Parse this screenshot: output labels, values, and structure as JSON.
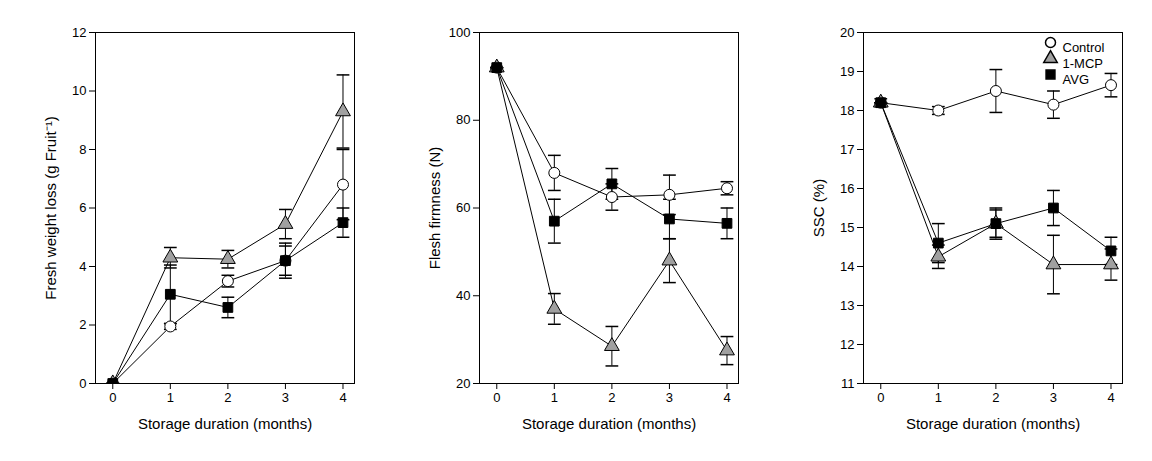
{
  "chart_data": [
    {
      "type": "line",
      "x_label": "Storage duration (months)",
      "y_label": "Fresh weight loss (g Fruit⁻¹)",
      "x": [
        0,
        1,
        2,
        3,
        4
      ],
      "xlim": [
        -0.3,
        4.2
      ],
      "xticks": [
        0,
        1,
        2,
        3,
        4
      ],
      "ylim": [
        0,
        12
      ],
      "yticks": [
        0,
        2,
        4,
        6,
        8,
        10,
        12
      ],
      "series": [
        {
          "name": "Control",
          "color": "#ffffff",
          "marker": "circle",
          "values": [
            0,
            1.95,
            3.5,
            4.2,
            6.8
          ],
          "errors": [
            0,
            0.1,
            0.2,
            0.5,
            1.2
          ]
        },
        {
          "name": "1-MCP",
          "color": "#a0a0a0",
          "marker": "triangle",
          "values": [
            0,
            4.3,
            4.25,
            5.45,
            9.3
          ],
          "errors": [
            0,
            0.35,
            0.3,
            0.5,
            1.25
          ]
        },
        {
          "name": "AVG",
          "color": "#000000",
          "marker": "square",
          "values": [
            0,
            3.05,
            2.6,
            4.2,
            5.5
          ],
          "errors": [
            0,
            1.0,
            0.35,
            0.6,
            0.5
          ]
        }
      ]
    },
    {
      "type": "line",
      "x_label": "Storage duration (months)",
      "y_label": "Flesh firmness (N)",
      "x": [
        0,
        1,
        2,
        3,
        4
      ],
      "xlim": [
        -0.3,
        4.2
      ],
      "xticks": [
        0,
        1,
        2,
        3,
        4
      ],
      "ylim": [
        20,
        100
      ],
      "yticks": [
        20,
        40,
        60,
        80,
        100
      ],
      "series": [
        {
          "name": "Control",
          "color": "#ffffff",
          "marker": "circle",
          "values": [
            92,
            68,
            62.5,
            63,
            64.5
          ],
          "errors": [
            0,
            4,
            3,
            4.5,
            1.5
          ]
        },
        {
          "name": "1-MCP",
          "color": "#a0a0a0",
          "marker": "triangle",
          "values": [
            92,
            37,
            28.5,
            48,
            27.5
          ],
          "errors": [
            0,
            3.5,
            4.5,
            5,
            3.2
          ]
        },
        {
          "name": "AVG",
          "color": "#000000",
          "marker": "square",
          "values": [
            92,
            57,
            65.5,
            57.5,
            56.5
          ],
          "errors": [
            0,
            5,
            3.5,
            4.5,
            3.5
          ]
        }
      ]
    },
    {
      "type": "line",
      "x_label": "Storage duration (months)",
      "y_label": "SSC (%)",
      "x": [
        0,
        1,
        2,
        3,
        4
      ],
      "xlim": [
        -0.3,
        4.2
      ],
      "xticks": [
        0,
        1,
        2,
        3,
        4
      ],
      "ylim": [
        11,
        20
      ],
      "yticks": [
        11,
        12,
        13,
        14,
        15,
        16,
        17,
        18,
        19,
        20
      ],
      "legend": "top-right",
      "series": [
        {
          "name": "Control",
          "color": "#ffffff",
          "marker": "circle",
          "values": [
            18.2,
            18.0,
            18.5,
            18.15,
            18.65
          ],
          "errors": [
            0.1,
            0.1,
            0.55,
            0.35,
            0.3
          ]
        },
        {
          "name": "1-MCP",
          "color": "#a0a0a0",
          "marker": "triangle",
          "values": [
            18.2,
            14.25,
            15.1,
            14.05,
            14.05
          ],
          "errors": [
            0,
            0.3,
            0.4,
            0.75,
            0.4
          ]
        },
        {
          "name": "AVG",
          "color": "#000000",
          "marker": "square",
          "values": [
            18.2,
            14.6,
            15.1,
            15.5,
            14.4
          ],
          "errors": [
            0,
            0.5,
            0.35,
            0.45,
            0.35
          ]
        }
      ]
    }
  ]
}
